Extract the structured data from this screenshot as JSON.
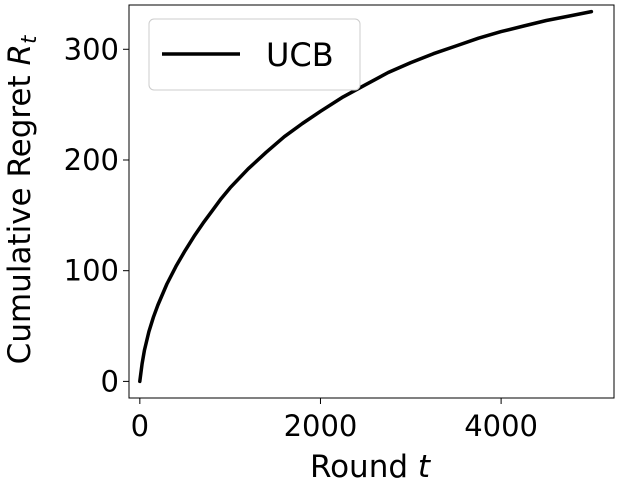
{
  "chart_data": {
    "type": "line",
    "title": "",
    "xlabel": "Round",
    "xlabel_var": "t",
    "ylabel": "Cumulative Regret",
    "ylabel_var": "R",
    "ylabel_sub": "t",
    "xlim": [
      -120,
      5250
    ],
    "ylim": [
      -15,
      340
    ],
    "xticks": [
      0,
      2000,
      4000
    ],
    "yticks": [
      0,
      100,
      200,
      300
    ],
    "grid": false,
    "legend": {
      "location": "top-left",
      "entries": [
        "UCB"
      ]
    },
    "series": [
      {
        "name": "UCB",
        "color": "#000000",
        "x": [
          0,
          25,
          50,
          100,
          150,
          200,
          300,
          400,
          500,
          600,
          700,
          800,
          900,
          1000,
          1200,
          1400,
          1600,
          1800,
          2000,
          2250,
          2500,
          2750,
          3000,
          3250,
          3500,
          3750,
          4000,
          4250,
          4500,
          4750,
          5000
        ],
        "values": [
          0,
          16,
          28,
          45,
          58,
          69,
          88,
          104,
          118,
          131,
          143,
          154,
          165,
          175,
          192,
          207,
          221,
          233,
          244,
          257,
          268,
          279,
          288,
          296,
          303,
          310,
          316,
          321,
          326,
          330,
          334
        ]
      }
    ]
  }
}
